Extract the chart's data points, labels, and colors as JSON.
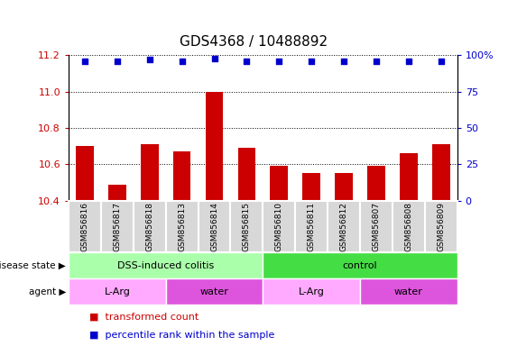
{
  "title": "GDS4368 / 10488892",
  "samples": [
    "GSM856816",
    "GSM856817",
    "GSM856818",
    "GSM856813",
    "GSM856814",
    "GSM856815",
    "GSM856810",
    "GSM856811",
    "GSM856812",
    "GSM856807",
    "GSM856808",
    "GSM856809"
  ],
  "bar_values": [
    10.7,
    10.49,
    10.71,
    10.67,
    11.0,
    10.69,
    10.59,
    10.55,
    10.55,
    10.59,
    10.66,
    10.71
  ],
  "percentile_values": [
    96,
    96,
    97,
    96,
    98,
    96,
    96,
    96,
    96,
    96,
    96,
    96
  ],
  "ylim_left": [
    10.4,
    11.2
  ],
  "ylim_right": [
    0,
    100
  ],
  "yticks_left": [
    10.4,
    10.6,
    10.8,
    11.0,
    11.2
  ],
  "yticks_right": [
    0,
    25,
    50,
    75,
    100
  ],
  "bar_color": "#cc0000",
  "dot_color": "#0000cc",
  "bar_width": 0.55,
  "disease_state_groups": [
    {
      "label": "DSS-induced colitis",
      "start": 0,
      "end": 6,
      "color": "#aaffaa"
    },
    {
      "label": "control",
      "start": 6,
      "end": 12,
      "color": "#44dd44"
    }
  ],
  "agent_groups": [
    {
      "label": "L-Arg",
      "start": 0,
      "end": 3,
      "color": "#ffaaff"
    },
    {
      "label": "water",
      "start": 3,
      "end": 6,
      "color": "#dd55dd"
    },
    {
      "label": "L-Arg",
      "start": 6,
      "end": 9,
      "color": "#ffaaff"
    },
    {
      "label": "water",
      "start": 9,
      "end": 12,
      "color": "#dd55dd"
    }
  ],
  "legend_items": [
    {
      "label": "transformed count",
      "color": "#cc0000"
    },
    {
      "label": "percentile rank within the sample",
      "color": "#0000cc"
    }
  ],
  "grid_color": "black",
  "title_fontsize": 11,
  "tick_fontsize": 8,
  "sample_label_fontsize": 6.5,
  "row_label_fontsize": 8,
  "legend_fontsize": 8,
  "sample_box_color": "#d8d8d8",
  "sample_box_edge_color": "#ffffff"
}
